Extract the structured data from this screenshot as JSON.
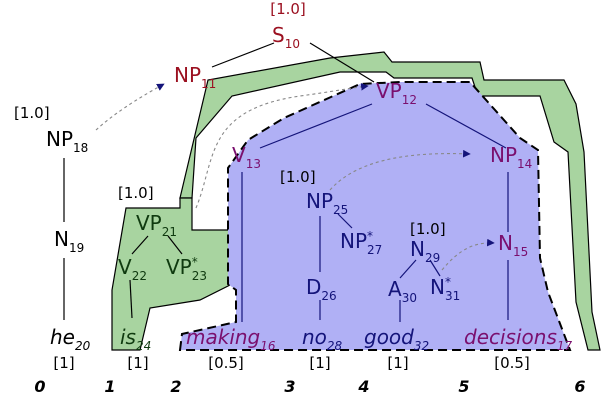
{
  "colors": {
    "red_node": "#9b1020",
    "purple_node": "#7a0f6e",
    "navy_node": "#14147a",
    "dark_green_node": "#0f3a0f",
    "black_node": "#000000",
    "green_fill": "#a8d4a0",
    "blue_fill": "#b0b0f5"
  },
  "nodes": {
    "s": {
      "label": "S",
      "sub": "10",
      "weight": "[1.0]"
    },
    "np11": {
      "label": "NP",
      "sub": "11"
    },
    "np18": {
      "label": "NP",
      "sub": "18",
      "weight": "[1.0]"
    },
    "n19": {
      "label": "N",
      "sub": "19"
    },
    "vp12": {
      "label": "VP",
      "sub": "12"
    },
    "v13": {
      "label": "V",
      "sub": "13"
    },
    "np14": {
      "label": "NP",
      "sub": "14"
    },
    "n15": {
      "label": "N",
      "sub": "15"
    },
    "vp21": {
      "label": "VP",
      "sub": "21",
      "weight": "[1.0]"
    },
    "v22": {
      "label": "V",
      "sub": "22"
    },
    "vp23": {
      "label": "VP",
      "sup": "*",
      "sub": "23"
    },
    "np25": {
      "label": "NP",
      "sub": "25",
      "weight": "[1.0]"
    },
    "d26": {
      "label": "D",
      "sub": "26"
    },
    "np27": {
      "label": "NP",
      "sup": "*",
      "sub": "27"
    },
    "n29": {
      "label": "N",
      "sub": "29",
      "weight": "[1.0]"
    },
    "a30": {
      "label": "A",
      "sub": "30"
    },
    "n31": {
      "label": "N",
      "sup": "*",
      "sub": "31"
    }
  },
  "words": [
    {
      "text": "he",
      "sub": "20",
      "weight": "[1]"
    },
    {
      "text": "is",
      "sub": "24",
      "weight": "[1]"
    },
    {
      "text": "making",
      "sub": "16",
      "weight": "[0.5]"
    },
    {
      "text": "no",
      "sub": "28",
      "weight": "[1]"
    },
    {
      "text": "good",
      "sub": "32",
      "weight": "[1]"
    },
    {
      "text": "decisions",
      "sub": "17",
      "weight": "[0.5]"
    }
  ],
  "positions": [
    "0",
    "1",
    "2",
    "3",
    "4",
    "5",
    "6"
  ]
}
